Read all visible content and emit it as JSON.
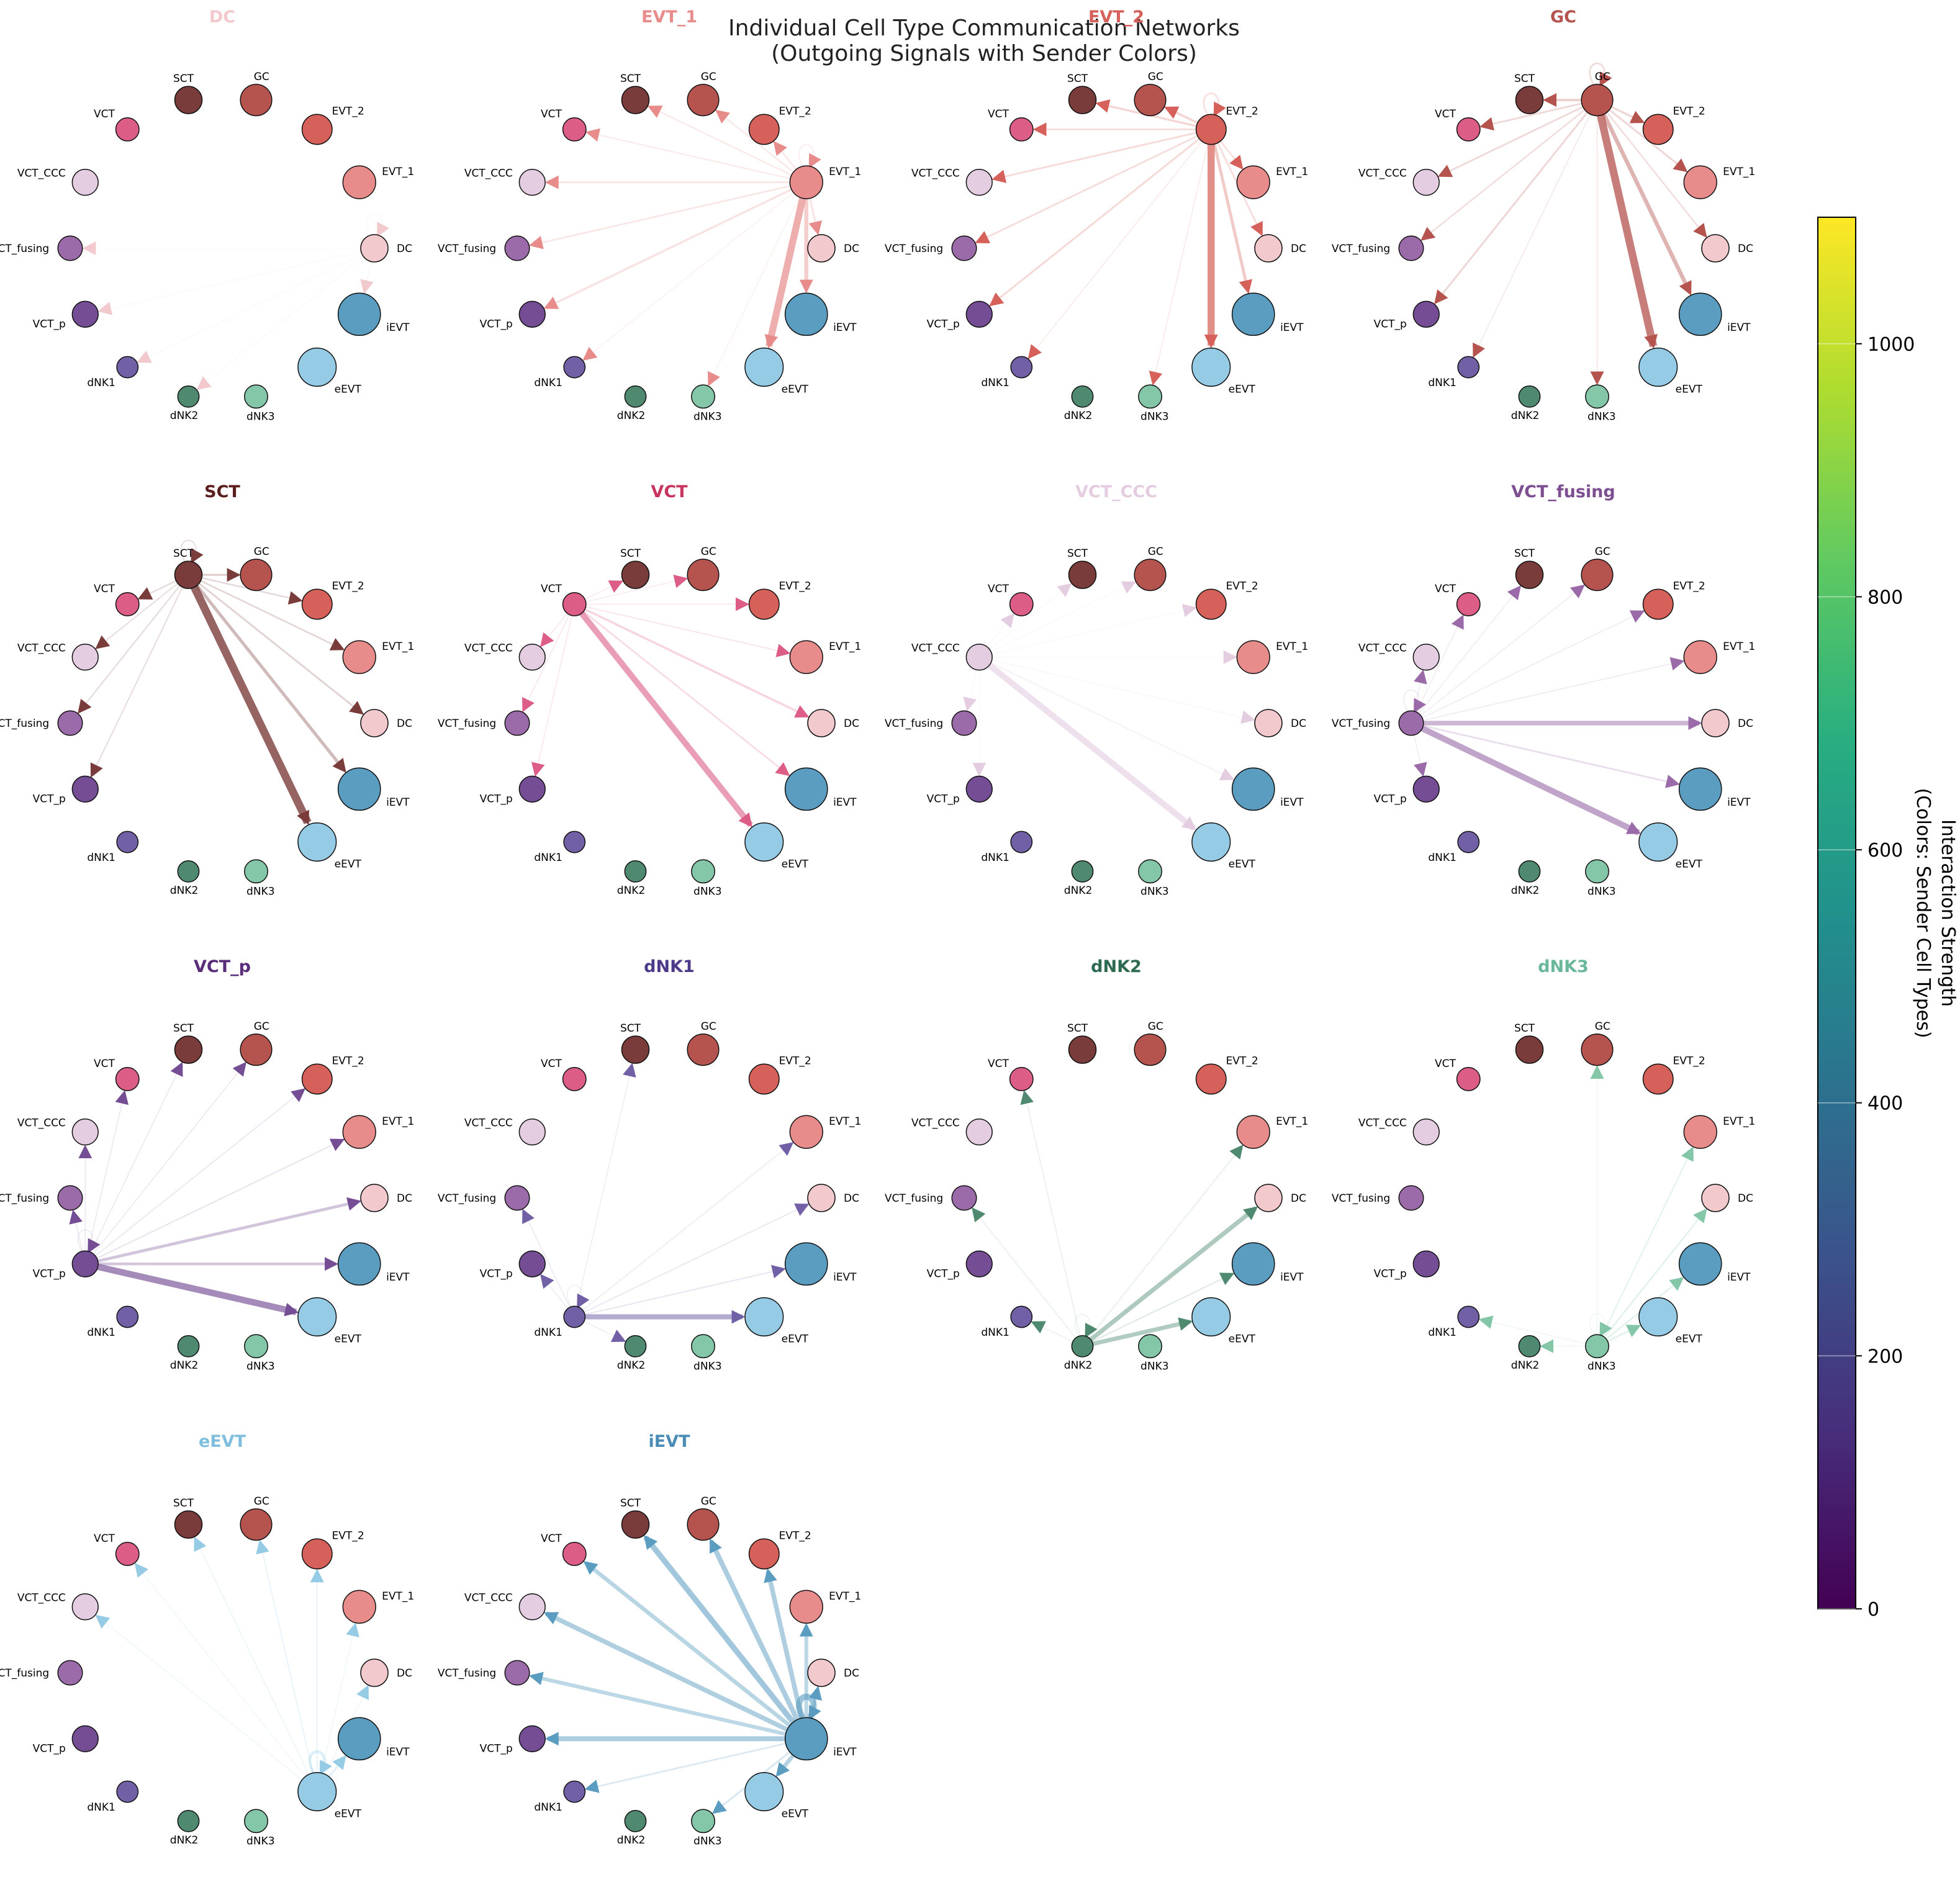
{
  "figure": {
    "title_line1": "Individual Cell Type Communication Networks",
    "title_line2": "(Outgoing Signals with Sender Colors)"
  },
  "cell_types": [
    {
      "name": "DC",
      "color": "#f2c9cc",
      "size": 1.0
    },
    {
      "name": "EVT_1",
      "color": "#e88b8b",
      "size": 1.2
    },
    {
      "name": "EVT_2",
      "color": "#d6615a",
      "size": 1.1
    },
    {
      "name": "GC",
      "color": "#b5544f",
      "size": 1.15
    },
    {
      "name": "SCT",
      "color": "#7a3c3a",
      "size": 1.0
    },
    {
      "name": "VCT",
      "color": "#dc5e87",
      "size": 0.85
    },
    {
      "name": "VCT_CCC",
      "color": "#e4cde0",
      "size": 0.95
    },
    {
      "name": "VCT_fusing",
      "color": "#9a6aa9",
      "size": 0.9
    },
    {
      "name": "VCT_p",
      "color": "#744d94",
      "size": 0.95
    },
    {
      "name": "dNK1",
      "color": "#7260a6",
      "size": 0.78
    },
    {
      "name": "dNK2",
      "color": "#4f8a70",
      "size": 0.78
    },
    {
      "name": "dNK3",
      "color": "#84c6a8",
      "size": 0.85
    },
    {
      "name": "eEVT",
      "color": "#95cbe4",
      "size": 1.4
    },
    {
      "name": "iEVT",
      "color": "#5b9dc1",
      "size": 1.55
    }
  ],
  "panels": [
    {
      "sender": "DC",
      "title_color": "#f2c9cc",
      "edges": [
        [
          "DC",
          30
        ],
        [
          "iEVT",
          50
        ],
        [
          "VCT_fusing",
          8
        ],
        [
          "VCT_p",
          10
        ],
        [
          "dNK1",
          12
        ],
        [
          "dNK2",
          10
        ]
      ]
    },
    {
      "sender": "EVT_1",
      "title_color": "#e88b8b",
      "edges": [
        [
          "eEVT",
          700
        ],
        [
          "iEVT",
          380
        ],
        [
          "DC",
          150
        ],
        [
          "VCT_CCC",
          130
        ],
        [
          "VCT_fusing",
          120
        ],
        [
          "VCT_p",
          160
        ],
        [
          "EVT_2",
          110
        ],
        [
          "GC",
          100
        ],
        [
          "SCT",
          90
        ],
        [
          "VCT",
          80
        ],
        [
          "EVT_1",
          60
        ],
        [
          "dNK1",
          25
        ],
        [
          "dNK3",
          25
        ]
      ]
    },
    {
      "sender": "EVT_2",
      "title_color": "#d6615a",
      "edges": [
        [
          "eEVT",
          720
        ],
        [
          "iEVT",
          260
        ],
        [
          "DC",
          120
        ],
        [
          "EVT_1",
          110
        ],
        [
          "GC",
          180
        ],
        [
          "SCT",
          170
        ],
        [
          "VCT",
          120
        ],
        [
          "VCT_CCC",
          130
        ],
        [
          "VCT_fusing",
          120
        ],
        [
          "VCT_p",
          140
        ],
        [
          "EVT_2",
          100
        ],
        [
          "dNK1",
          30
        ],
        [
          "dNK3",
          30
        ]
      ]
    },
    {
      "sender": "GC",
      "title_color": "#b5544f",
      "edges": [
        [
          "eEVT",
          780
        ],
        [
          "iEVT",
          380
        ],
        [
          "DC",
          100
        ],
        [
          "EVT_1",
          140
        ],
        [
          "EVT_2",
          150
        ],
        [
          "SCT",
          200
        ],
        [
          "GC",
          110
        ],
        [
          "VCT",
          120
        ],
        [
          "VCT_CCC",
          120
        ],
        [
          "VCT_fusing",
          100
        ],
        [
          "VCT_p",
          140
        ],
        [
          "dNK1",
          30
        ],
        [
          "dNK3",
          40
        ]
      ]
    },
    {
      "sender": "SCT",
      "title_color": "#5a1e1e",
      "edges": [
        [
          "eEVT",
          820
        ],
        [
          "iEVT",
          280
        ],
        [
          "DC",
          130
        ],
        [
          "EVT_1",
          110
        ],
        [
          "EVT_2",
          100
        ],
        [
          "GC",
          150
        ],
        [
          "SCT",
          60
        ],
        [
          "VCT",
          90
        ],
        [
          "VCT_CCC",
          70
        ],
        [
          "VCT_fusing",
          80
        ],
        [
          "VCT_p",
          70
        ]
      ]
    },
    {
      "sender": "VCT",
      "title_color": "#c9345f",
      "edges": [
        [
          "eEVT",
          600
        ],
        [
          "DC",
          170
        ],
        [
          "iEVT",
          120
        ],
        [
          "EVT_1",
          60
        ],
        [
          "EVT_2",
          40
        ],
        [
          "GC",
          30
        ],
        [
          "SCT",
          30
        ],
        [
          "VCT_CCC",
          40
        ],
        [
          "VCT_fusing",
          40
        ],
        [
          "VCT_p",
          40
        ]
      ]
    },
    {
      "sender": "VCT_CCC",
      "title_color": "#e4cde0",
      "edges": [
        [
          "eEVT",
          600
        ],
        [
          "iEVT",
          120
        ],
        [
          "DC",
          60
        ],
        [
          "EVT_1",
          40
        ],
        [
          "EVT_2",
          30
        ],
        [
          "GC",
          20
        ],
        [
          "SCT",
          20
        ],
        [
          "VCT",
          20
        ],
        [
          "VCT_fusing",
          20
        ],
        [
          "VCT_p",
          20
        ]
      ]
    },
    {
      "sender": "VCT_fusing",
      "title_color": "#7d4f91",
      "edges": [
        [
          "eEVT",
          600
        ],
        [
          "DC",
          450
        ],
        [
          "iEVT",
          120
        ],
        [
          "EVT_1",
          40
        ],
        [
          "EVT_2",
          30
        ],
        [
          "GC",
          30
        ],
        [
          "SCT",
          30
        ],
        [
          "VCT",
          30
        ],
        [
          "VCT_fusing",
          40
        ],
        [
          "VCT_CCC",
          30
        ],
        [
          "VCT_p",
          30
        ]
      ]
    },
    {
      "sender": "VCT_p",
      "title_color": "#5a2d7a",
      "edges": [
        [
          "eEVT",
          650
        ],
        [
          "DC",
          260
        ],
        [
          "iEVT",
          240
        ],
        [
          "EVT_1",
          60
        ],
        [
          "EVT_2",
          40
        ],
        [
          "GC",
          30
        ],
        [
          "SCT",
          30
        ],
        [
          "VCT",
          30
        ],
        [
          "VCT_CCC",
          30
        ],
        [
          "VCT_fusing",
          40
        ],
        [
          "VCT_p",
          30
        ]
      ]
    },
    {
      "sender": "dNK1",
      "title_color": "#4e3a8a",
      "edges": [
        [
          "eEVT",
          500
        ],
        [
          "iEVT",
          60
        ],
        [
          "DC",
          50
        ],
        [
          "EVT_1",
          30
        ],
        [
          "VCT_fusing",
          40
        ],
        [
          "VCT_p",
          30
        ],
        [
          "SCT",
          20
        ],
        [
          "dNK1",
          20
        ],
        [
          "dNK2",
          20
        ]
      ]
    },
    {
      "sender": "dNK2",
      "title_color": "#2e6a50",
      "edges": [
        [
          "DC",
          420
        ],
        [
          "eEVT",
          400
        ],
        [
          "iEVT",
          80
        ],
        [
          "EVT_1",
          40
        ],
        [
          "VCT",
          30
        ],
        [
          "VCT_fusing",
          30
        ],
        [
          "dNK1",
          20
        ],
        [
          "dNK2",
          20
        ]
      ]
    },
    {
      "sender": "dNK3",
      "title_color": "#6ab89a",
      "edges": [
        [
          "DC",
          120
        ],
        [
          "eEVT",
          130
        ],
        [
          "iEVT",
          120
        ],
        [
          "EVT_1",
          100
        ],
        [
          "dNK2",
          30
        ],
        [
          "dNK1",
          30
        ],
        [
          "GC",
          20
        ],
        [
          "dNK3",
          20
        ]
      ]
    },
    {
      "sender": "eEVT",
      "title_color": "#7fbfdd",
      "edges": [
        [
          "eEVT",
          250
        ],
        [
          "iEVT",
          160
        ],
        [
          "EVT_2",
          90
        ],
        [
          "GC",
          80
        ],
        [
          "SCT",
          60
        ],
        [
          "VCT_CCC",
          40
        ],
        [
          "VCT",
          30
        ],
        [
          "EVT_1",
          40
        ],
        [
          "DC",
          40
        ]
      ]
    },
    {
      "sender": "iEVT",
      "title_color": "#4a8cb5",
      "edges": [
        [
          "iEVT",
          600
        ],
        [
          "eEVT",
          400
        ],
        [
          "SCT",
          550
        ],
        [
          "GC",
          480
        ],
        [
          "EVT_2",
          450
        ],
        [
          "EVT_1",
          350
        ],
        [
          "DC",
          260
        ],
        [
          "VCT",
          380
        ],
        [
          "VCT_CCC",
          450
        ],
        [
          "VCT_fusing",
          350
        ],
        [
          "VCT_p",
          480
        ],
        [
          "dNK1",
          120
        ],
        [
          "dNK3",
          140
        ]
      ]
    }
  ],
  "colorbar": {
    "label_line1": "Interaction Strength",
    "label_line2": "(Colors: Sender Cell Types)",
    "colormap": "viridis",
    "min": 0,
    "max": 1100,
    "ticks": [
      "0",
      "200",
      "400",
      "600",
      "800",
      "1000"
    ]
  }
}
